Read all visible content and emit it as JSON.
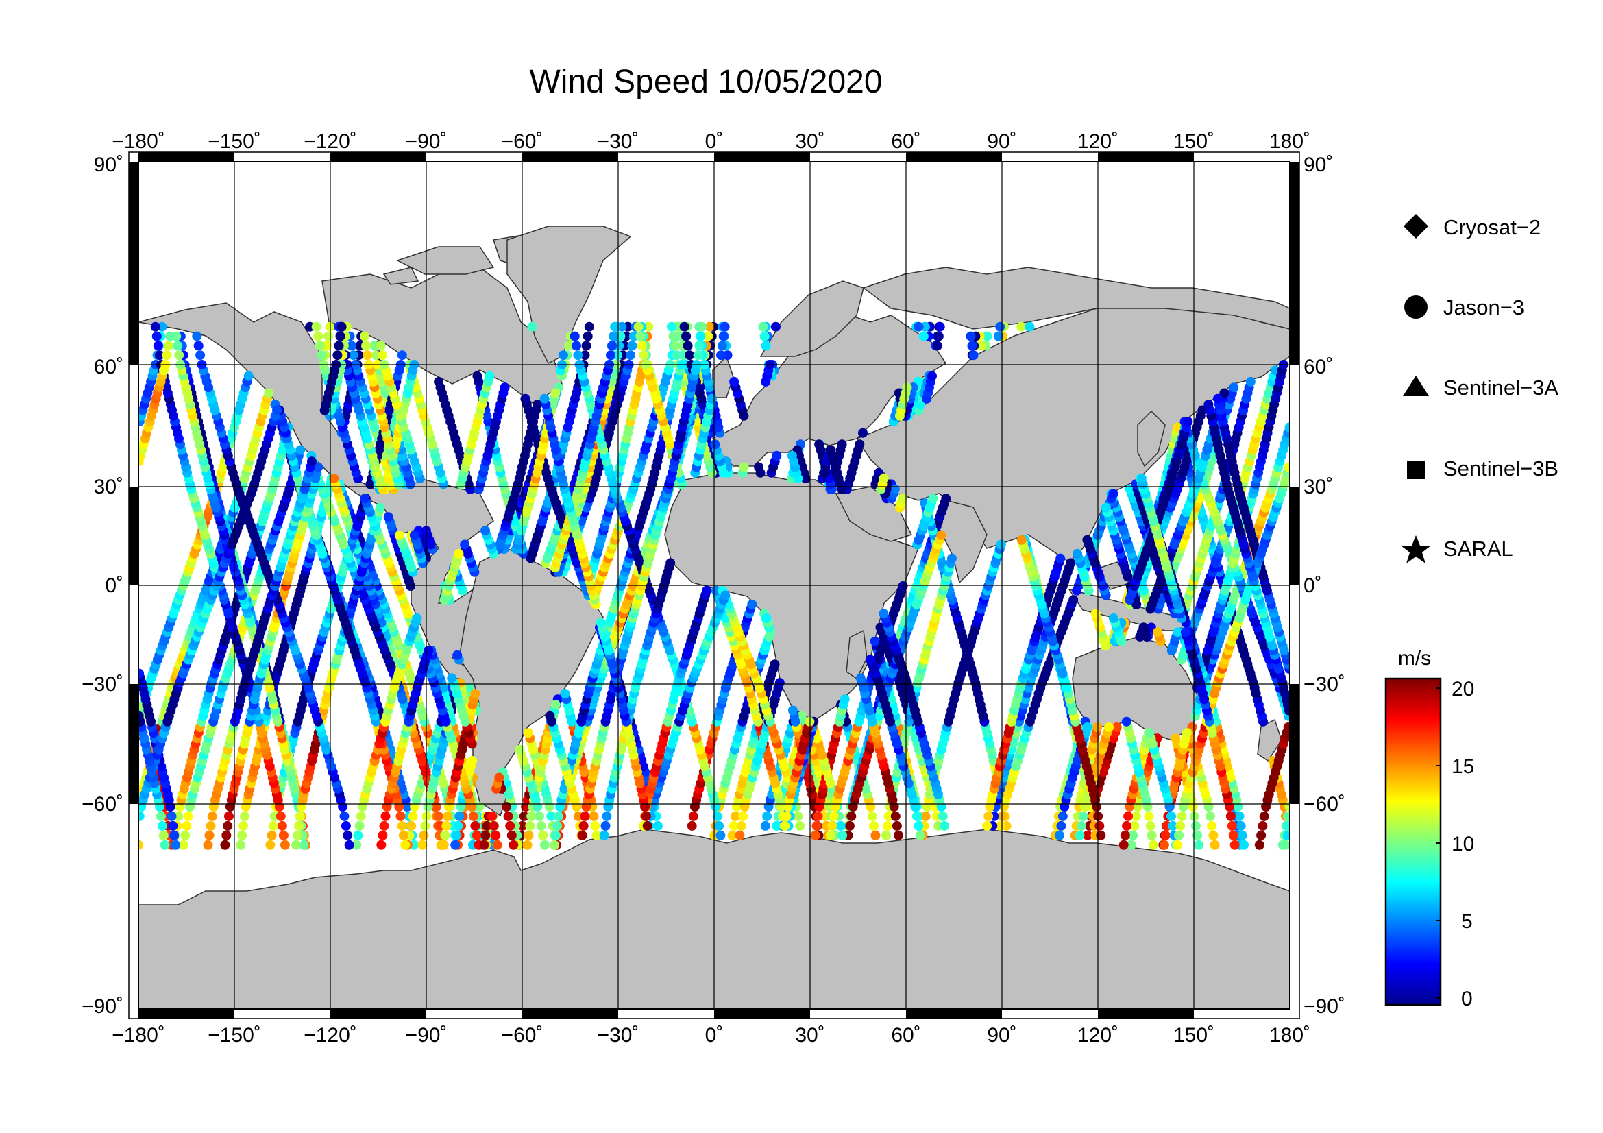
{
  "title": "Wind Speed 10/05/2020",
  "map": {
    "projection": "equirectangular",
    "lon_range": [
      -180,
      180
    ],
    "lat_range": [
      -90,
      90
    ],
    "lon_ticks": [
      "−180˚",
      "−150˚",
      "−120˚",
      "−90˚",
      "−60˚",
      "−30˚",
      "0˚",
      "30˚",
      "60˚",
      "90˚",
      "120˚",
      "150˚",
      "180˚"
    ],
    "lat_ticks": [
      "90˚",
      "60˚",
      "30˚",
      "0˚",
      "−30˚",
      "−60˚",
      "−90˚"
    ],
    "land_color": "#c0c0c0",
    "ocean_color": "#ffffff",
    "grid": true
  },
  "legend": [
    {
      "label": "Cryosat−2",
      "marker": "diamond"
    },
    {
      "label": "Jason−3",
      "marker": "circle"
    },
    {
      "label": "Sentinel−3A",
      "marker": "triangle"
    },
    {
      "label": "Sentinel−3B",
      "marker": "square"
    },
    {
      "label": "SARAL",
      "marker": "star"
    }
  ],
  "colorbar": {
    "unit": "m/s",
    "min": 0,
    "max": 20,
    "ticks": [
      "20",
      "15",
      "10",
      "5",
      "0"
    ],
    "colormap": "jet"
  }
}
